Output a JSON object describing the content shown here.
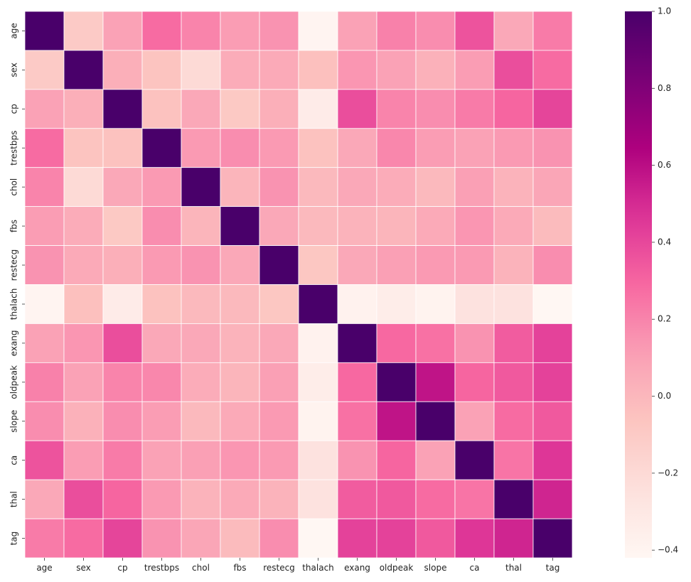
{
  "chart_data": {
    "type": "heatmap",
    "title": "",
    "xlabel": "",
    "ylabel": "",
    "x_labels": [
      "age",
      "sex",
      "cp",
      "trestbps",
      "chol",
      "fbs",
      "restecg",
      "thalach",
      "exang",
      "oldpeak",
      "slope",
      "ca",
      "thal",
      "tag"
    ],
    "y_labels": [
      "age",
      "sex",
      "cp",
      "trestbps",
      "chol",
      "fbs",
      "restecg",
      "thalach",
      "exang",
      "oldpeak",
      "slope",
      "ca",
      "thal",
      "tag"
    ],
    "matrix": [
      [
        1.0,
        -0.1,
        0.1,
        0.28,
        0.2,
        0.12,
        0.15,
        -0.4,
        0.1,
        0.21,
        0.17,
        0.36,
        0.07,
        0.23
      ],
      [
        -0.1,
        1.0,
        0.04,
        -0.06,
        -0.2,
        0.05,
        0.06,
        -0.04,
        0.14,
        0.1,
        0.03,
        0.12,
        0.38,
        0.28
      ],
      [
        0.1,
        0.04,
        1.0,
        -0.05,
        0.07,
        -0.09,
        0.04,
        -0.33,
        0.38,
        0.2,
        0.17,
        0.23,
        0.3,
        0.41
      ],
      [
        0.28,
        -0.06,
        -0.05,
        1.0,
        0.13,
        0.17,
        0.13,
        -0.05,
        0.07,
        0.19,
        0.12,
        0.1,
        0.13,
        0.15
      ],
      [
        0.2,
        -0.2,
        0.07,
        0.13,
        1.0,
        0.01,
        0.15,
        -0.01,
        0.07,
        0.05,
        -0.01,
        0.11,
        0.02,
        0.08
      ],
      [
        0.12,
        0.05,
        -0.09,
        0.17,
        0.01,
        1.0,
        0.07,
        -0.01,
        0.02,
        0.01,
        0.06,
        0.14,
        0.06,
        -0.02
      ],
      [
        0.15,
        0.06,
        0.04,
        0.13,
        0.15,
        0.07,
        1.0,
        -0.08,
        0.07,
        0.11,
        0.13,
        0.13,
        0.02,
        0.17
      ],
      [
        -0.4,
        -0.04,
        -0.33,
        -0.05,
        -0.01,
        -0.01,
        -0.08,
        1.0,
        -0.38,
        -0.34,
        -0.39,
        -0.26,
        -0.26,
        -0.42
      ],
      [
        0.1,
        0.14,
        0.38,
        0.07,
        0.07,
        0.02,
        0.07,
        -0.38,
        1.0,
        0.29,
        0.26,
        0.15,
        0.33,
        0.42
      ],
      [
        0.21,
        0.1,
        0.2,
        0.19,
        0.05,
        0.01,
        0.11,
        -0.34,
        0.29,
        1.0,
        0.58,
        0.3,
        0.34,
        0.42
      ],
      [
        0.17,
        0.03,
        0.17,
        0.12,
        -0.01,
        0.06,
        0.13,
        -0.39,
        0.26,
        0.58,
        1.0,
        0.1,
        0.28,
        0.34
      ],
      [
        0.36,
        0.12,
        0.23,
        0.1,
        0.11,
        0.14,
        0.13,
        -0.26,
        0.15,
        0.3,
        0.1,
        1.0,
        0.25,
        0.46
      ],
      [
        0.07,
        0.38,
        0.3,
        0.13,
        0.02,
        0.06,
        0.02,
        -0.26,
        0.33,
        0.34,
        0.28,
        0.25,
        1.0,
        0.52
      ],
      [
        0.23,
        0.28,
        0.41,
        0.15,
        0.08,
        -0.02,
        0.17,
        -0.42,
        0.42,
        0.42,
        0.34,
        0.46,
        0.52,
        1.0
      ]
    ],
    "vmin": -0.42,
    "vmax": 1.0,
    "colormap": "RdPu",
    "colorbar_ticks": [
      -0.4,
      -0.2,
      0.0,
      0.2,
      0.4,
      0.6,
      0.8,
      1.0
    ],
    "colorbar_tick_labels": [
      "−0.4",
      "−0.2",
      "0.0",
      "0.2",
      "0.4",
      "0.6",
      "0.8",
      "1.0"
    ],
    "cell_border_color": "#ffffff",
    "colorbar_placement": "right"
  }
}
